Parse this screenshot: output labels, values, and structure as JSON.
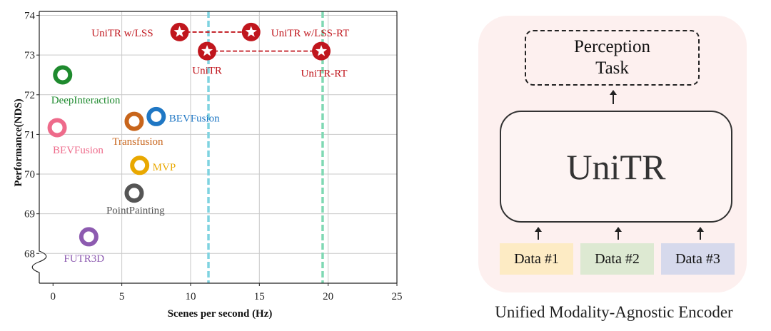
{
  "chart_data": {
    "type": "scatter",
    "xlabel": "Scenes per second (Hz)",
    "ylabel": "Performance(NDS)",
    "xlim": [
      -1,
      25
    ],
    "ylim": [
      67.25,
      74.1
    ],
    "xticks": [
      "0",
      "5",
      "10",
      "15",
      "20",
      "25"
    ],
    "yticks": [
      "68",
      "69",
      "70",
      "71",
      "72",
      "73",
      "74"
    ],
    "axis_break": "y-bottom",
    "grid": true,
    "vlines": [
      {
        "x": 11.3,
        "color": "#7fd3e0"
      },
      {
        "x": 19.6,
        "color": "#7fd8b3"
      }
    ],
    "points": [
      {
        "label": "UniTR w/LSS",
        "x": 9.2,
        "y": 73.58,
        "marker": "star",
        "color": "#c0161d"
      },
      {
        "label": "UniTR w/LSS-RT",
        "x": 14.4,
        "y": 73.58,
        "marker": "star",
        "color": "#c0161d"
      },
      {
        "label": "UniTR",
        "x": 11.2,
        "y": 73.1,
        "marker": "star",
        "color": "#c0161d"
      },
      {
        "label": "UniTR-RT",
        "x": 19.5,
        "y": 73.1,
        "marker": "star",
        "color": "#c0161d"
      },
      {
        "label": "DeepInteraction",
        "x": 0.7,
        "y": 72.5,
        "marker": "ring",
        "color": "#1e8a2e"
      },
      {
        "label": "BEVFusion",
        "x": 7.5,
        "y": 71.45,
        "marker": "ring",
        "color": "#1f77c4"
      },
      {
        "label": "Transfusion",
        "x": 5.9,
        "y": 71.33,
        "marker": "ring",
        "color": "#c8651b"
      },
      {
        "label": "BEVFusion",
        "x": 0.3,
        "y": 71.17,
        "marker": "ring",
        "color": "#ee6b8b"
      },
      {
        "label": "MVP",
        "x": 6.3,
        "y": 70.22,
        "marker": "ring",
        "color": "#e9a800"
      },
      {
        "label": "PointPainting",
        "x": 5.9,
        "y": 69.52,
        "marker": "ring",
        "color": "#555555"
      },
      {
        "label": "FUTR3D",
        "x": 2.6,
        "y": 68.42,
        "marker": "ring",
        "color": "#8d5bb0"
      }
    ],
    "connectors": [
      [
        0,
        1
      ],
      [
        2,
        3
      ]
    ]
  },
  "diagram": {
    "task_line1": "Perception",
    "task_line2": "Task",
    "encoder": "UniTR",
    "inputs": [
      {
        "label": "Data #1",
        "color": "#fdebc4"
      },
      {
        "label": "Data #2",
        "color": "#dde9d2"
      },
      {
        "label": "Data #3",
        "color": "#d6d9ec"
      }
    ],
    "caption": "Unified Modality-Agnostic Encoder"
  }
}
